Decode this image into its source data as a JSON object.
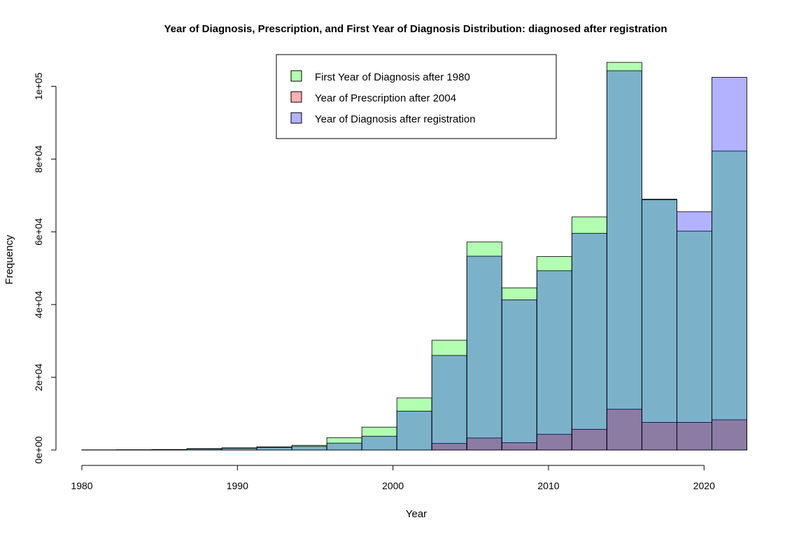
{
  "chart_data": {
    "type": "histogram",
    "title": "Year of Diagnosis, Prescription, and First Year of Diagnosis Distribution: diagnosed after registration",
    "xlabel": "Year",
    "ylabel": "Frequency",
    "xlim": [
      1980,
      2023
    ],
    "ylim": [
      0,
      107000
    ],
    "x_ticks": [
      1980,
      1990,
      2000,
      2010,
      2020
    ],
    "x_tick_labels": [
      "1980",
      "1990",
      "2000",
      "2010",
      "2020"
    ],
    "y_ticks": [
      0,
      20000,
      40000,
      60000,
      80000,
      100000
    ],
    "y_tick_labels": [
      "0e+00",
      "2e+04",
      "4e+04",
      "6e+04",
      "8e+04",
      "1e+05"
    ],
    "bin_edges": [
      1980,
      1982.25,
      1984.5,
      1986.75,
      1989,
      1991.25,
      1993.5,
      1995.75,
      1998,
      2000.25,
      2002.5,
      2004.75,
      2007,
      2009.25,
      2011.5,
      2013.75,
      2016,
      2018.25,
      2020.5,
      2022.75
    ],
    "series": [
      {
        "name": "First Year of Diagnosis after 1980",
        "color": "#00ff00",
        "values": [
          50,
          80,
          150,
          400,
          600,
          900,
          1300,
          3400,
          6300,
          14300,
          30200,
          57200,
          44600,
          53200,
          64100,
          106600,
          69000,
          60200,
          82200
        ]
      },
      {
        "name": "Year of Prescription after 2004",
        "color": "#ff0000",
        "values": [
          0,
          0,
          0,
          0,
          0,
          0,
          0,
          0,
          0,
          0,
          1800,
          3300,
          2000,
          4300,
          5700,
          11200,
          7600,
          7600,
          8300
        ]
      },
      {
        "name": "Year of Diagnosis after registration",
        "color": "#0000ff",
        "values": [
          40,
          60,
          120,
          300,
          450,
          700,
          1000,
          1900,
          3800,
          10700,
          26000,
          53300,
          41300,
          49300,
          59600,
          104300,
          68800,
          65500,
          102500
        ]
      }
    ],
    "legend": {
      "position": "top-center",
      "entries": [
        "First Year of Diagnosis after 1980",
        "Year of Prescription after 2004",
        "Year of Diagnosis after registration"
      ]
    }
  }
}
